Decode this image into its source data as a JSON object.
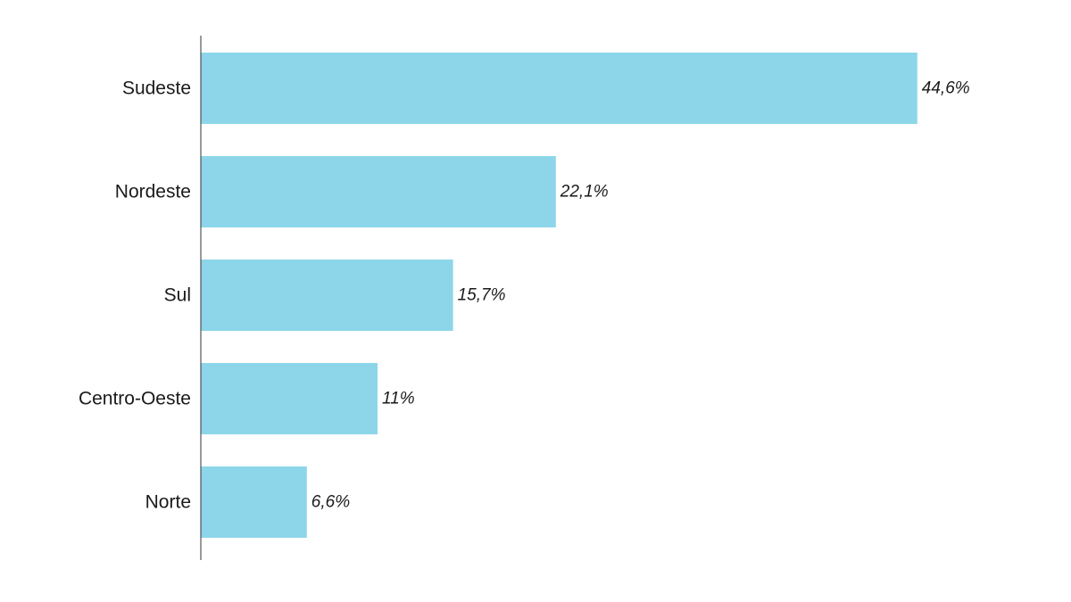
{
  "chart_data": {
    "type": "bar",
    "orientation": "horizontal",
    "categories": [
      "Sudeste",
      "Nordeste",
      "Sul",
      "Centro-Oeste",
      "Norte"
    ],
    "values": [
      44.6,
      22.1,
      15.7,
      11,
      6.6
    ],
    "value_labels": [
      "44,6%",
      "22,1%",
      "15,7%",
      "11%",
      "6,6%"
    ],
    "xlim": [
      0,
      50
    ],
    "grid": false,
    "legend": "none",
    "colors": {
      "bar": "#8dd6e9",
      "axis": "#333333",
      "text": "#1a1a1a"
    }
  }
}
